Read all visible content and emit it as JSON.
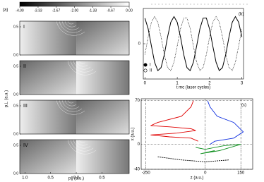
{
  "chart_data": [
    {
      "type": "image",
      "label": "(a)",
      "colorbar": {
        "lim": [
          -4,
          0
        ],
        "ticks": [
          {
            "value": -4,
            "label": "-4.00"
          },
          {
            "value": -3.33,
            "label": "-3.33"
          },
          {
            "value": -2.67,
            "label": "-2.67"
          },
          {
            "value": -2,
            "label": "-2.00"
          },
          {
            "value": -1.33,
            "label": "-1.33"
          },
          {
            "value": -0.67,
            "label": "-0.67"
          },
          {
            "value": 0,
            "label": "0.00"
          }
        ]
      },
      "panels": [
        "I",
        "II",
        "III",
        "IV"
      ],
      "xlabel": "p∥ (a.u.)",
      "ylabel": "p⊥ (a.u.)",
      "xlim": [
        -1.1,
        1.03
      ],
      "xticks": [
        {
          "value": -1,
          "label": "1.0"
        },
        {
          "value": -0.5,
          "label": "0.5"
        },
        {
          "value": 0,
          "label": "0.0"
        },
        {
          "value": 0.5,
          "label": "0.5"
        }
      ],
      "ylim": [
        0,
        0.6
      ],
      "yticks": [
        {
          "value": 0.5,
          "label": "0.5"
        },
        {
          "value": 0,
          "label": "0.0"
        }
      ]
    },
    {
      "type": "line",
      "label": "(b)",
      "xlabel": "t mc (laser cycles)",
      "x": [
        0,
        0.1,
        0.2,
        0.3,
        0.4,
        0.5,
        0.6,
        0.7,
        0.8,
        0.9,
        1.0,
        1.1,
        1.2,
        1.3,
        1.4,
        1.5,
        1.6,
        1.7,
        1.8,
        1.9,
        2.0,
        2.1,
        2.2,
        2.3,
        2.4,
        2.5,
        2.6,
        2.7,
        2.8,
        2.9,
        3.0
      ],
      "series": [
        {
          "name": "I",
          "color": "#000000",
          "line_style": "solid",
          "marker": "filled",
          "values": [
            0.94,
            0.55,
            -0.08,
            -0.68,
            -0.99,
            -0.88,
            -0.4,
            0.25,
            0.79,
            1,
            0.79,
            0.25,
            -0.4,
            -0.88,
            -0.99,
            -0.68,
            -0.08,
            0.55,
            0.94,
            0.95,
            0.54,
            -0.09,
            -0.68,
            -0.99,
            -0.88,
            -0.4,
            0.25,
            0.79,
            1,
            0.79,
            0.25
          ]
        },
        {
          "name": "II",
          "color": "#000000",
          "line_style": "dotted",
          "marker": "open",
          "values": [
            -0.4,
            0.25,
            0.79,
            1,
            0.79,
            0.25,
            -0.4,
            -0.88,
            -0.99,
            -0.68,
            -0.08,
            0.55,
            0.94,
            0.95,
            0.57,
            -0.09,
            -0.68,
            -0.99,
            -0.88,
            -0.4,
            0.25,
            0.79,
            1,
            0.79,
            0.25,
            -0.4,
            -0.88,
            -0.99,
            -0.68,
            -0.08,
            0.55
          ]
        }
      ],
      "xlim": [
        -0.05,
        3.05
      ],
      "xticks": [
        0,
        1,
        2,
        3
      ],
      "ylim": [
        -1.3,
        1.3
      ],
      "yticks": [
        0
      ]
    },
    {
      "type": "trajectory",
      "label": "(c)",
      "xlabel": "z (a.u.)",
      "ylabel": "x (a.u.)",
      "series": [
        {
          "color": "#e00000",
          "x": [
            -50,
            -60,
            -100,
            -200,
            -230,
            -150,
            -60,
            -40,
            -120,
            -230,
            -150,
            -60,
            -30
          ],
          "y": [
            70,
            60,
            45,
            35,
            30,
            28,
            25,
            22,
            18,
            15,
            12,
            10,
            5
          ]
        },
        {
          "color": "#1030e0",
          "x": [
            10,
            20,
            50,
            120,
            160,
            120,
            40,
            20
          ],
          "y": [
            70,
            60,
            45,
            35,
            20,
            10,
            5,
            0
          ]
        },
        {
          "color": "#109020",
          "x": [
            -40,
            0,
            80,
            150,
            60,
            -20,
            40
          ],
          "y": [
            -5,
            -8,
            -2,
            0,
            -10,
            -15,
            -10
          ]
        },
        {
          "color": "#000000",
          "x": [
            -200,
            -100,
            0,
            100
          ],
          "y": [
            -20,
            -25,
            -28,
            -25
          ]
        }
      ],
      "xlim": [
        -270,
        200
      ],
      "xticks": [
        -250,
        0,
        150
      ],
      "ylim": [
        -40,
        73
      ],
      "yticks": [
        70,
        0,
        -40
      ]
    }
  ]
}
